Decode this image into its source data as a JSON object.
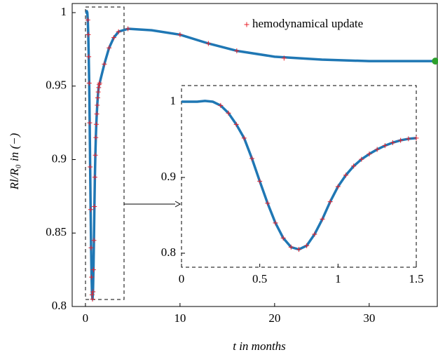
{
  "chart_data": [
    {
      "type": "line",
      "xlabel": "t in months",
      "ylabel": "Rl/R₀ in (−)",
      "xlim": [
        -1.4,
        37.2
      ],
      "ylim": [
        0.8,
        1.0062
      ],
      "xticks": [
        0,
        10,
        20,
        30
      ],
      "yticks": [
        0.8,
        0.85,
        0.9,
        0.95,
        1
      ],
      "series": [
        {
          "color": "#1f77b4",
          "x": [
            0,
            0.1,
            0.15,
            0.2,
            0.25,
            0.3,
            0.35,
            0.4,
            0.45,
            0.5,
            0.55,
            0.6,
            0.65,
            0.7,
            0.75,
            0.8,
            0.85,
            0.9,
            0.95,
            1.0,
            1.05,
            1.1,
            1.15,
            1.2,
            1.25,
            1.3,
            1.35,
            1.4,
            1.45,
            1.5,
            2,
            2.5,
            3,
            3.5,
            4.5,
            7,
            10,
            13,
            16,
            20,
            25,
            30,
            37
          ],
          "values": [
            1.0,
            1.0,
            1.001,
            1.0,
            0.995,
            0.985,
            0.97,
            0.952,
            0.925,
            0.895,
            0.866,
            0.84,
            0.82,
            0.808,
            0.805,
            0.81,
            0.825,
            0.845,
            0.868,
            0.888,
            0.903,
            0.915,
            0.924,
            0.931,
            0.937,
            0.942,
            0.946,
            0.949,
            0.951,
            0.952,
            0.965,
            0.976,
            0.983,
            0.987,
            0.989,
            0.988,
            0.985,
            0.979,
            0.974,
            0.97,
            0.968,
            0.967,
            0.967
          ]
        }
      ],
      "markers": {
        "name": "hemodynamical update",
        "color": "#e8202a",
        "x": [
          0.25,
          0.3,
          0.35,
          0.4,
          0.45,
          0.5,
          0.55,
          0.6,
          0.65,
          0.7,
          0.75,
          0.8,
          0.85,
          0.9,
          0.95,
          1.0,
          1.05,
          1.1,
          1.15,
          1.2,
          1.25,
          1.3,
          1.35,
          1.4,
          1.45,
          1.5,
          2,
          2.5,
          3,
          3.5,
          4.5,
          10,
          13,
          16,
          21
        ],
        "values": [
          0.995,
          0.985,
          0.97,
          0.952,
          0.925,
          0.895,
          0.866,
          0.84,
          0.82,
          0.808,
          0.805,
          0.81,
          0.825,
          0.845,
          0.868,
          0.888,
          0.903,
          0.915,
          0.924,
          0.931,
          0.937,
          0.942,
          0.946,
          0.949,
          0.951,
          0.952,
          0.965,
          0.976,
          0.983,
          0.987,
          0.989,
          0.985,
          0.979,
          0.974,
          0.969
        ]
      },
      "end_point": {
        "x": 37,
        "value": 0.967,
        "color": "#2ca02c"
      }
    },
    {
      "type": "line",
      "xlim": [
        0,
        1.5
      ],
      "ylim": [
        0.7815,
        1.0213
      ],
      "xticks": [
        0,
        0.5,
        1,
        1.5
      ],
      "yticks": [
        0.8,
        0.9,
        1
      ],
      "series": [
        {
          "color": "#1f77b4",
          "x": [
            0,
            0.1,
            0.15,
            0.2,
            0.25,
            0.3,
            0.35,
            0.4,
            0.45,
            0.5,
            0.55,
            0.6,
            0.65,
            0.7,
            0.75,
            0.8,
            0.85,
            0.9,
            0.95,
            1.0,
            1.05,
            1.1,
            1.15,
            1.2,
            1.25,
            1.3,
            1.35,
            1.4,
            1.45,
            1.5
          ],
          "values": [
            1.0,
            1.0,
            1.001,
            1.0,
            0.995,
            0.985,
            0.97,
            0.952,
            0.925,
            0.895,
            0.866,
            0.84,
            0.82,
            0.808,
            0.805,
            0.81,
            0.825,
            0.845,
            0.868,
            0.888,
            0.903,
            0.915,
            0.924,
            0.931,
            0.937,
            0.942,
            0.946,
            0.949,
            0.951,
            0.952
          ]
        }
      ],
      "markers": {
        "color": "#e8202a",
        "x": [
          0.25,
          0.3,
          0.35,
          0.4,
          0.45,
          0.5,
          0.55,
          0.6,
          0.65,
          0.7,
          0.75,
          0.8,
          0.85,
          0.9,
          0.95,
          1.0,
          1.05,
          1.1,
          1.15,
          1.2,
          1.25,
          1.3,
          1.35,
          1.4,
          1.45,
          1.5
        ],
        "values": [
          0.995,
          0.985,
          0.97,
          0.952,
          0.925,
          0.895,
          0.866,
          0.84,
          0.82,
          0.808,
          0.805,
          0.81,
          0.825,
          0.845,
          0.868,
          0.888,
          0.903,
          0.915,
          0.924,
          0.931,
          0.937,
          0.942,
          0.946,
          0.949,
          0.951,
          0.952
        ]
      }
    }
  ]
}
